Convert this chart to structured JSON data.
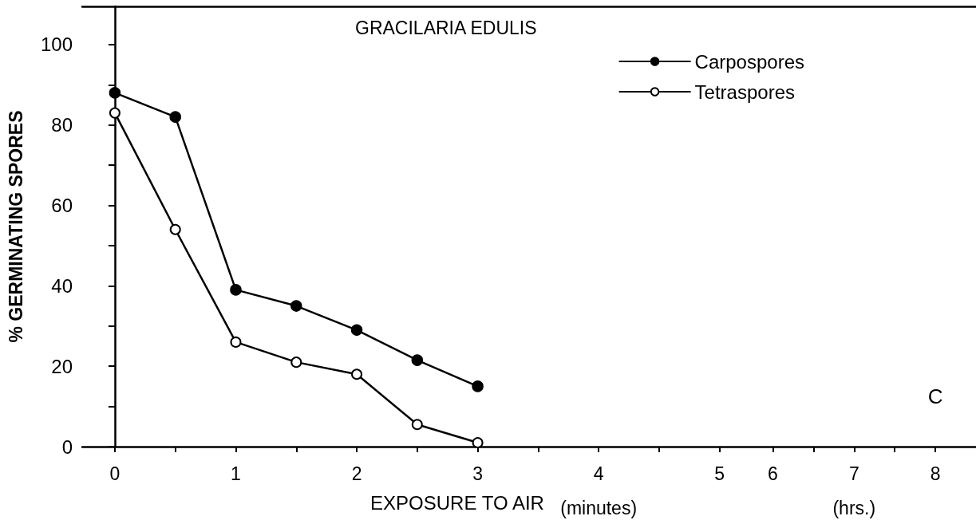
{
  "chart_data": {
    "type": "line",
    "title": "GRACILARIA EDULIS",
    "xlabel": "EXPOSURE TO AIR",
    "ylabel": "% GERMINATING SPORES",
    "annotations": [
      "(minutes)",
      "(hrs.)",
      "C"
    ],
    "x": [
      0,
      0.5,
      1,
      1.5,
      2,
      2.5,
      3
    ],
    "series": [
      {
        "name": "Carpospores",
        "color": "#000000",
        "values": [
          88,
          82,
          39,
          35,
          29,
          21.5,
          15
        ]
      },
      {
        "name": "Tetraspores",
        "color": "#000000",
        "values": [
          83,
          54,
          26,
          21,
          18,
          5.5,
          1
        ]
      }
    ],
    "xlim": [
      -0.27,
      7.12
    ],
    "xticks": [
      0,
      {
        "value": 0.5,
        "label": null
      },
      1,
      {
        "value": 1.5,
        "label": null
      },
      2,
      {
        "value": 2.5,
        "label": null
      },
      3,
      {
        "value": 3.5,
        "label": null
      },
      4,
      {
        "value": 4.5,
        "label": null
      },
      5
    ],
    "x2lim": [
      -2.5,
      8.5
    ],
    "x2ticks": [
      6,
      {
        "value": 6.5,
        "label": null
      },
      7,
      {
        "value": 7.5,
        "label": null
      },
      8
    ],
    "ylim": [
      0,
      109.5
    ],
    "yticks": [
      0,
      {
        "value": 10,
        "label": null
      },
      20,
      {
        "value": 30,
        "label": null
      },
      40,
      {
        "value": 50,
        "label": null
      },
      60,
      {
        "value": 70,
        "label": null
      },
      80,
      {
        "value": 90,
        "label": null
      },
      100
    ],
    "grid": false,
    "legend": "top right",
    "marker": "circle",
    "line_style": "solid"
  }
}
